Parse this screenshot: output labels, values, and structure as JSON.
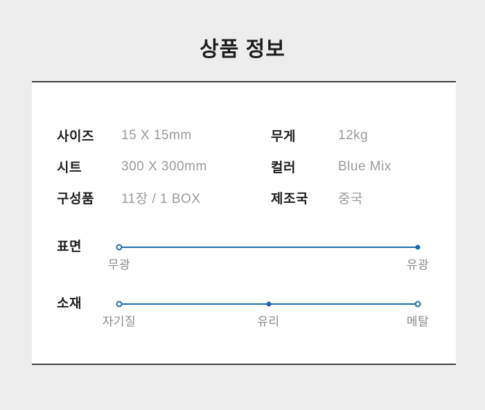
{
  "page": {
    "title": "상품 정보"
  },
  "specs": [
    {
      "label": "사이즈",
      "value": "15 X 15mm"
    },
    {
      "label": "무게",
      "value": "12kg"
    },
    {
      "label": "시트",
      "value": "300 X 300mm"
    },
    {
      "label": "컬러",
      "value": "Blue Mix"
    },
    {
      "label": "구성품",
      "value": "11장 / 1 BOX"
    },
    {
      "label": "제조국",
      "value": "중국"
    }
  ],
  "sliders": [
    {
      "label": "표면",
      "options": [
        {
          "label": "무광",
          "selected": false
        },
        {
          "label": "유광",
          "selected": true
        }
      ]
    },
    {
      "label": "소재",
      "options": [
        {
          "label": "자기질",
          "selected": false
        },
        {
          "label": "유리",
          "selected": true
        },
        {
          "label": "메탈",
          "selected": false
        }
      ]
    }
  ],
  "colors": {
    "accent": "#1c6bb2",
    "selected-dot": "#12233f",
    "background": "#ededed",
    "card-border": "#3f3f3f",
    "value-text": "#9a9a9a",
    "label-text": "#1d1d1d",
    "tick-text": "#8a8a8a"
  }
}
